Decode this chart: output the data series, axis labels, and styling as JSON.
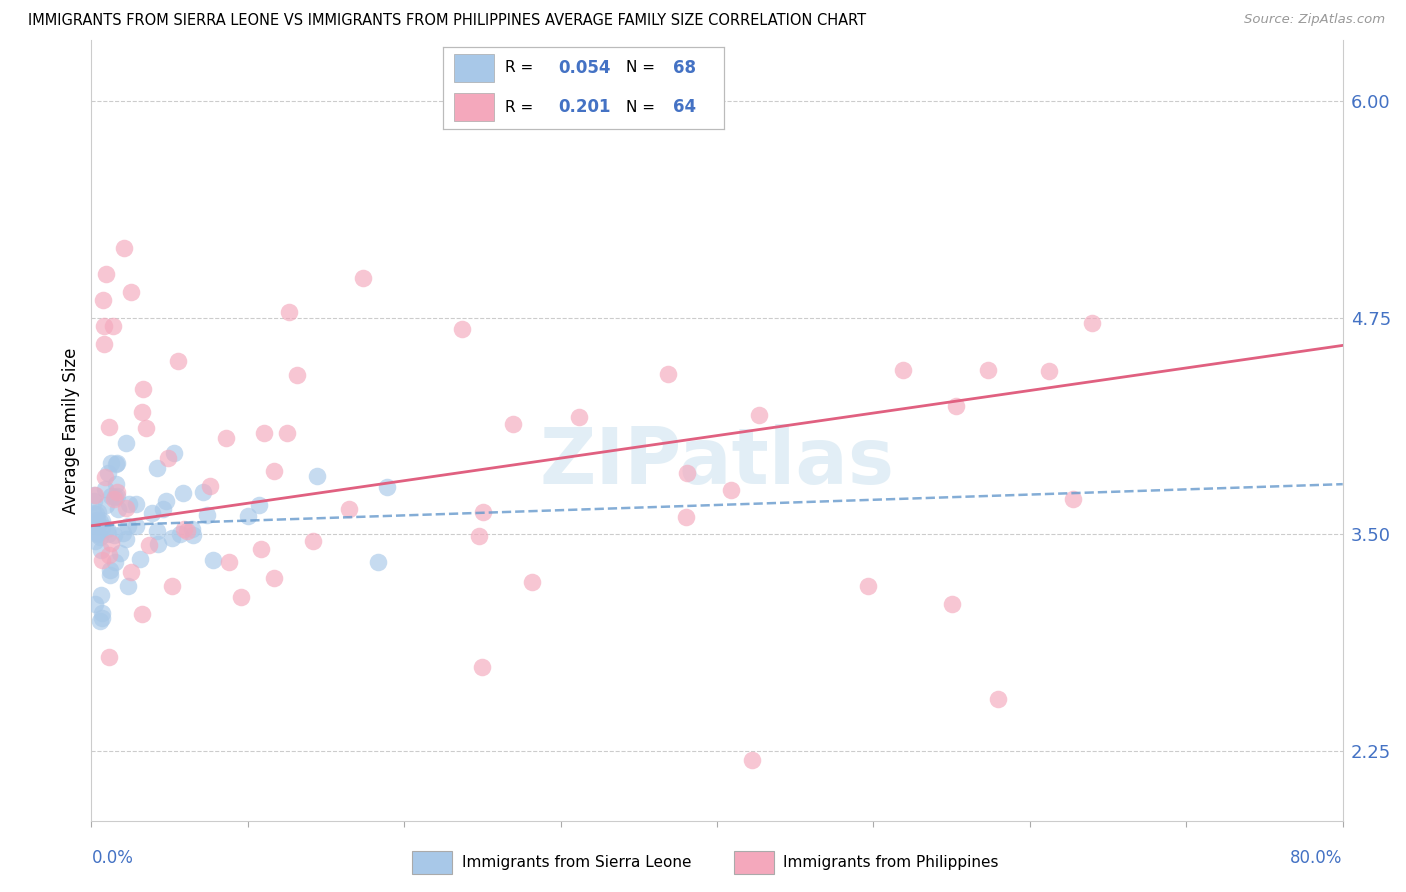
{
  "title": "IMMIGRANTS FROM SIERRA LEONE VS IMMIGRANTS FROM PHILIPPINES AVERAGE FAMILY SIZE CORRELATION CHART",
  "source": "Source: ZipAtlas.com",
  "ylabel": "Average Family Size",
  "xlim": [
    0.0,
    80.0
  ],
  "ylim": [
    1.85,
    6.35
  ],
  "yticks_right": [
    2.25,
    3.5,
    4.75,
    6.0
  ],
  "sierra_leone_color": "#a8c8e8",
  "philippines_color": "#f4a8bc",
  "trend_sierra_leone_color": "#6699cc",
  "trend_philippines_color": "#e06080",
  "watermark": "ZIPatlas",
  "sl_r": "0.054",
  "sl_n": "68",
  "ph_r": "0.201",
  "ph_n": "64",
  "label_color": "#4472c4",
  "ph_label_color": "#e06080"
}
